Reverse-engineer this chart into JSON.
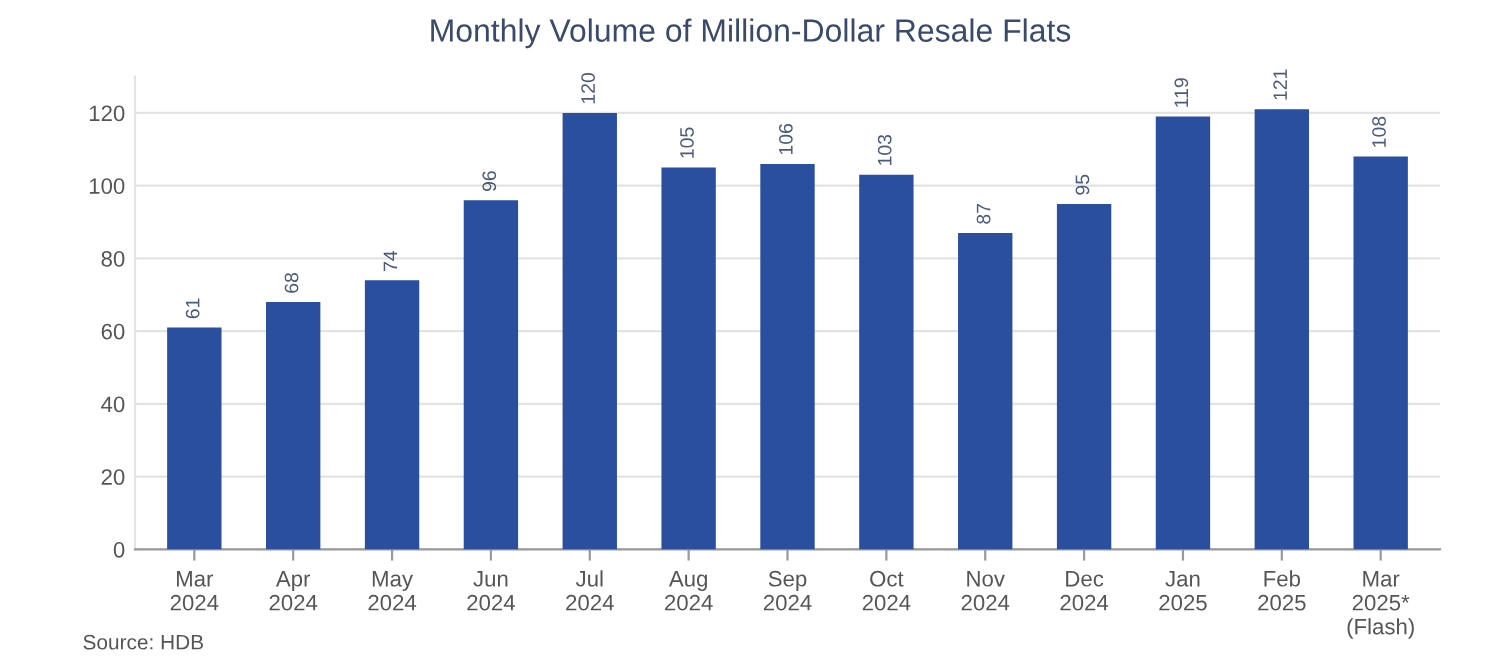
{
  "chart_data": {
    "type": "bar",
    "title": "Monthly Volume of Million-Dollar Resale Flats",
    "categories": [
      "Mar\n2024",
      "Apr\n2024",
      "May\n2024",
      "Jun\n2024",
      "Jul\n2024",
      "Aug\n2024",
      "Sep\n2024",
      "Oct\n2024",
      "Nov\n2024",
      "Dec\n2024",
      "Jan\n2025",
      "Feb\n2025",
      "Mar\n2025*\n(Flash)"
    ],
    "values": [
      61,
      68,
      74,
      96,
      120,
      105,
      106,
      103,
      87,
      95,
      119,
      121,
      108
    ],
    "color": "#2a4f9f",
    "ylim": [
      0,
      130
    ],
    "yticks": [
      0,
      20,
      40,
      60,
      80,
      100,
      120
    ],
    "grid": "y",
    "data_labels": true,
    "annotations": [
      "Source: HDB"
    ]
  }
}
